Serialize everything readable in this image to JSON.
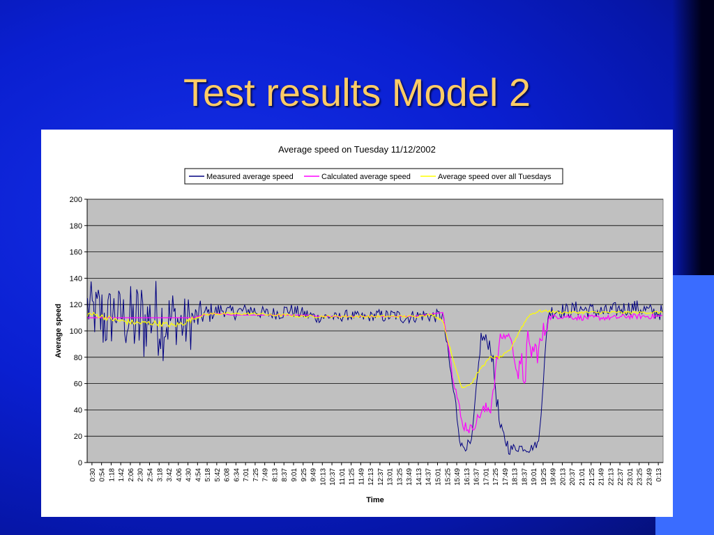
{
  "slide": {
    "title": "Test results Model 2"
  },
  "colors": {
    "measured": "#000080",
    "calculated": "#ff00ff",
    "average": "#ffff00",
    "plot_bg": "#c0c0c0"
  },
  "chart_data": {
    "type": "line",
    "title": "Average speed on Tuesday 11/12/2002",
    "xlabel": "Time",
    "ylabel": "Average speed",
    "ylim": [
      0,
      200
    ],
    "yticks": [
      0,
      20,
      40,
      60,
      80,
      100,
      120,
      140,
      160,
      180,
      200
    ],
    "grid": true,
    "legend_position": "top",
    "x_ticks": [
      "0:30",
      "0:54",
      "1:18",
      "1:42",
      "2:06",
      "2:30",
      "2:54",
      "3:18",
      "3:42",
      "4:06",
      "4:30",
      "4:54",
      "5:18",
      "5:42",
      "6:08",
      "6:34",
      "7:01",
      "7:25",
      "7:49",
      "8:13",
      "8:37",
      "9:01",
      "9:25",
      "9:49",
      "10:13",
      "10:37",
      "11:01",
      "11:25",
      "11:49",
      "12:13",
      "12:37",
      "13:01",
      "13:25",
      "13:49",
      "14:13",
      "14:37",
      "15:01",
      "15:25",
      "15:49",
      "16:13",
      "16:37",
      "17:01",
      "17:25",
      "17:49",
      "18:13",
      "18:37",
      "19:01",
      "19:25",
      "19:49",
      "20:13",
      "20:37",
      "21:01",
      "21:25",
      "21:49",
      "22:13",
      "22:37",
      "23:01",
      "23:25",
      "23:49",
      "0:13"
    ],
    "series": [
      {
        "name": "Measured average speed",
        "values": [
          118,
          112,
          108,
          115,
          110,
          105,
          108,
          112,
          106,
          110,
          104,
          108,
          112,
          114,
          116,
          114,
          115,
          116,
          114,
          113,
          114,
          116,
          114,
          112,
          110,
          111,
          110,
          112,
          111,
          110,
          112,
          111,
          112,
          110,
          111,
          112,
          111,
          112,
          60,
          12,
          14,
          95,
          90,
          25,
          10,
          12,
          10,
          15,
          114,
          116,
          115,
          117,
          116,
          115,
          114,
          116,
          117,
          118,
          116,
          114
        ],
        "noise": [
          22,
          30,
          25,
          20,
          28,
          35,
          25,
          30,
          25,
          20,
          22,
          12,
          8,
          6,
          5,
          6,
          5,
          6,
          5,
          5,
          6,
          5,
          5,
          5,
          4,
          4,
          4,
          4,
          4,
          4,
          5,
          5,
          5,
          5,
          5,
          5,
          5,
          5,
          8,
          4,
          4,
          6,
          8,
          6,
          4,
          3,
          3,
          4,
          6,
          6,
          6,
          6,
          6,
          6,
          6,
          6,
          6,
          6,
          6,
          6
        ]
      },
      {
        "name": "Calculated average speed",
        "values": [
          110,
          110,
          110,
          110,
          110,
          110,
          110,
          110,
          110,
          110,
          110,
          110,
          112,
          113,
          113,
          112,
          112,
          112,
          112,
          112,
          112,
          112,
          112,
          112,
          111,
          111,
          111,
          111,
          111,
          111,
          111,
          111,
          111,
          111,
          111,
          112,
          113,
          114,
          70,
          30,
          25,
          38,
          42,
          95,
          97,
          60,
          85,
          85,
          110,
          111,
          111,
          110,
          110,
          110,
          110,
          110,
          111,
          111,
          111,
          111
        ],
        "noise": [
          0,
          0,
          0,
          0,
          0,
          0,
          0,
          0,
          0,
          0,
          0,
          0,
          0,
          0,
          0,
          0,
          0,
          0,
          0,
          0,
          0,
          0,
          0,
          0,
          0,
          0,
          0,
          0,
          0,
          0,
          0,
          0,
          0,
          0,
          0,
          0,
          0,
          0,
          5,
          5,
          4,
          6,
          6,
          3,
          3,
          20,
          10,
          10,
          2,
          2,
          2,
          2,
          2,
          2,
          2,
          2,
          2,
          2,
          2,
          2
        ]
      },
      {
        "name": "Average speed over all Tuesdays",
        "values": [
          113,
          112,
          110,
          108,
          107,
          106,
          106,
          106,
          105,
          104,
          106,
          109,
          112,
          113,
          113,
          113,
          113,
          113,
          113,
          112,
          112,
          112,
          111,
          111,
          111,
          111,
          111,
          111,
          111,
          111,
          111,
          111,
          111,
          111,
          111,
          112,
          112,
          108,
          80,
          57,
          60,
          72,
          80,
          80,
          85,
          100,
          112,
          115,
          115,
          114,
          114,
          114,
          114,
          114,
          114,
          114,
          114,
          114,
          114,
          114
        ],
        "noise": [
          2,
          2,
          2,
          2,
          2,
          2,
          2,
          2,
          2,
          2,
          2,
          1,
          1,
          1,
          1,
          1,
          1,
          1,
          1,
          1,
          1,
          1,
          1,
          1,
          1,
          1,
          1,
          1,
          1,
          1,
          1,
          1,
          1,
          1,
          1,
          1,
          1,
          1,
          1,
          1,
          1,
          1,
          1,
          1,
          1,
          1,
          1,
          1,
          1,
          1,
          1,
          1,
          1,
          1,
          1,
          1,
          1,
          1,
          1,
          1
        ]
      }
    ]
  }
}
